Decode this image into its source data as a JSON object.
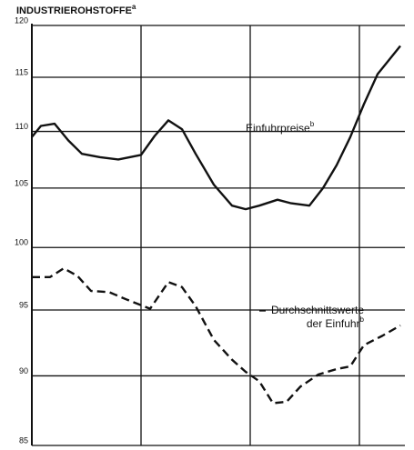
{
  "chart_data": {
    "type": "line",
    "title": "INDUSTRIEROHSTOFFE",
    "title_note": "a",
    "log": true,
    "grid": true,
    "xlim": [
      0,
      41
    ],
    "xticks": [
      0,
      12,
      24,
      36
    ],
    "ylim": [
      85,
      120
    ],
    "yticks": [
      85,
      90,
      95,
      100,
      105,
      110,
      115,
      120
    ],
    "series": [
      {
        "label": [
          "Einfuhrpreise"
        ],
        "note": "b",
        "color": "#111111",
        "dashed": false,
        "x": [
          0,
          1,
          2.5,
          4,
          5.5,
          7.5,
          9.5,
          12,
          13.5,
          15,
          16.5,
          18,
          20,
          22,
          23.5,
          25,
          27,
          28.5,
          30.5,
          32,
          33.5,
          35,
          36.5,
          38,
          40.5
        ],
        "values": [
          109.5,
          110.5,
          110.7,
          109.2,
          108,
          107.7,
          107.5,
          107.9,
          109.6,
          111,
          110.2,
          108,
          105.3,
          103.5,
          103.2,
          103.5,
          104,
          103.7,
          103.5,
          105,
          107,
          109.5,
          112.5,
          115.3,
          118
        ]
      },
      {
        "label": [
          "Durchschnittswerte",
          "der Einfuhr"
        ],
        "note": "b",
        "color": "#111111",
        "dashed": true,
        "x": [
          0,
          2,
          3.5,
          5,
          6.5,
          8.5,
          10.5,
          13,
          15,
          16.5,
          18,
          20,
          22,
          23.5,
          25,
          26.5,
          28,
          29.5,
          31.5,
          33.5,
          35,
          36.5,
          38.5,
          40.5
        ],
        "values": [
          97.6,
          97.6,
          98.3,
          97.7,
          96.5,
          96.4,
          95.8,
          95.1,
          97.2,
          96.8,
          95.3,
          92.7,
          91.2,
          90.3,
          89.6,
          88,
          88.1,
          89.2,
          90.1,
          90.5,
          90.7,
          92.3,
          93,
          93.8
        ]
      }
    ]
  }
}
